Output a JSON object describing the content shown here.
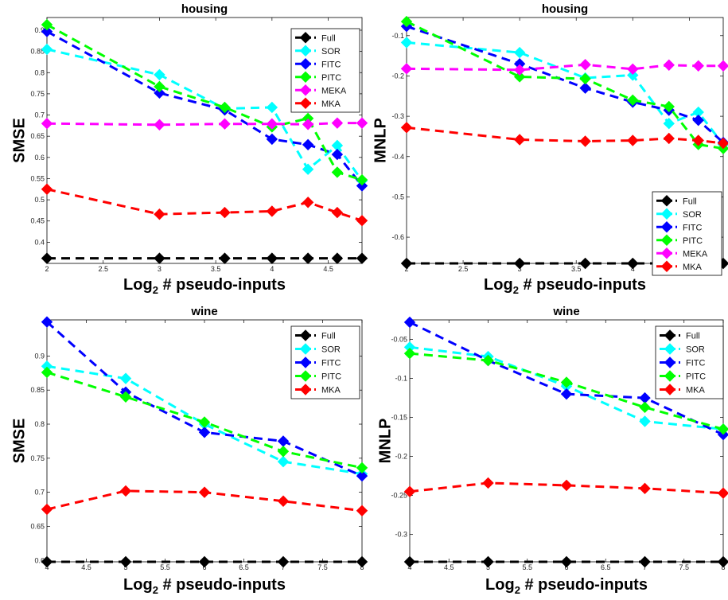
{
  "chart_data": [
    {
      "type": "line",
      "title": "housing",
      "ylabel": "SMSE",
      "xlabel_main": "Log",
      "xlabel_sub": "2",
      "xlabel_rest": " # pseudo-inputs",
      "xlim": [
        2,
        4.8
      ],
      "ylim": [
        0.35,
        0.93
      ],
      "xticks": [
        2,
        2.5,
        3,
        3.5,
        4,
        4.5
      ],
      "xtick_labels": [
        "2",
        "2.5",
        "3",
        "3.5",
        "4",
        "4.5"
      ],
      "yticks": [
        0.4,
        0.45,
        0.5,
        0.55,
        0.6,
        0.65,
        0.7,
        0.75,
        0.8,
        0.85,
        0.9
      ],
      "ytick_labels": [
        "0.4",
        "0.45",
        "0.5",
        "0.55",
        "0.6",
        "0.65",
        "0.7",
        "0.75",
        "0.8",
        "0.85",
        "0.9"
      ],
      "legend_position": "top-right",
      "series": [
        {
          "name": "Full",
          "color": "#000000",
          "x": [
            2,
            3,
            3.58,
            4,
            4.32,
            4.58,
            4.8
          ],
          "y": [
            0.362,
            0.362,
            0.362,
            0.362,
            0.362,
            0.362,
            0.362
          ]
        },
        {
          "name": "SOR",
          "color": "#00ffff",
          "x": [
            2,
            3,
            3.58,
            4,
            4.32,
            4.58,
            4.8
          ],
          "y": [
            0.855,
            0.795,
            0.715,
            0.718,
            0.572,
            0.628,
            0.545
          ]
        },
        {
          "name": "FITC",
          "color": "#0000ff",
          "x": [
            2,
            3,
            3.58,
            4,
            4.32,
            4.58,
            4.8
          ],
          "y": [
            0.897,
            0.752,
            0.712,
            0.643,
            0.63,
            0.607,
            0.533
          ]
        },
        {
          "name": "PITC",
          "color": "#00ff00",
          "x": [
            2,
            3,
            3.58,
            4,
            4.32,
            4.58,
            4.8
          ],
          "y": [
            0.913,
            0.767,
            0.718,
            0.672,
            0.692,
            0.565,
            0.547
          ]
        },
        {
          "name": "MEKA",
          "color": "#ff00ff",
          "x": [
            2,
            3,
            3.58,
            4,
            4.32,
            4.58,
            4.8
          ],
          "y": [
            0.68,
            0.677,
            0.679,
            0.679,
            0.678,
            0.681,
            0.681
          ]
        },
        {
          "name": "MKA",
          "color": "#ff0000",
          "x": [
            2,
            3,
            3.58,
            4,
            4.32,
            4.58,
            4.8
          ],
          "y": [
            0.525,
            0.466,
            0.47,
            0.473,
            0.494,
            0.47,
            0.451
          ]
        }
      ]
    },
    {
      "type": "line",
      "title": "housing",
      "ylabel": "MNLP",
      "xlabel_main": "Log",
      "xlabel_sub": "2",
      "xlabel_rest": " # pseudo-inputs",
      "xlim": [
        2,
        4.8
      ],
      "ylim": [
        -0.665,
        -0.055
      ],
      "xticks": [
        2,
        2.5,
        3,
        3.5,
        4,
        4.5
      ],
      "xtick_labels": [
        "2",
        "2.5",
        "3",
        "3.5",
        "4",
        "4.5"
      ],
      "yticks": [
        -0.6,
        -0.5,
        -0.4,
        -0.3,
        -0.2,
        -0.1
      ],
      "ytick_labels": [
        "-0.6",
        "-0.5",
        "-0.4",
        "-0.3",
        "-0.2",
        "-0.1"
      ],
      "legend_position": "bottom-right",
      "series": [
        {
          "name": "Full",
          "color": "#000000",
          "x": [
            2,
            3,
            3.58,
            4,
            4.32,
            4.58,
            4.8
          ],
          "y": [
            -0.665,
            -0.665,
            -0.665,
            -0.665,
            -0.665,
            -0.665,
            -0.665
          ]
        },
        {
          "name": "SOR",
          "color": "#00ffff",
          "x": [
            2,
            3,
            3.58,
            4,
            4.32,
            4.58,
            4.8
          ],
          "y": [
            -0.117,
            -0.142,
            -0.205,
            -0.198,
            -0.318,
            -0.29,
            -0.37
          ]
        },
        {
          "name": "FITC",
          "color": "#0000ff",
          "x": [
            2,
            3,
            3.58,
            4,
            4.32,
            4.58,
            4.8
          ],
          "y": [
            -0.077,
            -0.17,
            -0.23,
            -0.265,
            -0.285,
            -0.31,
            -0.365
          ]
        },
        {
          "name": "PITC",
          "color": "#00ff00",
          "x": [
            2,
            3,
            3.58,
            4,
            4.32,
            4.58,
            4.8
          ],
          "y": [
            -0.065,
            -0.202,
            -0.207,
            -0.26,
            -0.276,
            -0.37,
            -0.38
          ]
        },
        {
          "name": "MEKA",
          "color": "#ff00ff",
          "x": [
            2,
            3,
            3.58,
            4,
            4.32,
            4.58,
            4.8
          ],
          "y": [
            -0.182,
            -0.185,
            -0.172,
            -0.183,
            -0.173,
            -0.175,
            -0.175
          ]
        },
        {
          "name": "MKA",
          "color": "#ff0000",
          "x": [
            2,
            3,
            3.58,
            4,
            4.32,
            4.58,
            4.8
          ],
          "y": [
            -0.328,
            -0.358,
            -0.362,
            -0.36,
            -0.355,
            -0.36,
            -0.367
          ]
        }
      ]
    },
    {
      "type": "line",
      "title": "wine",
      "ylabel": "SMSE",
      "xlabel_main": "Log",
      "xlabel_sub": "2",
      "xlabel_rest": " # pseudo-inputs",
      "xlim": [
        4,
        8
      ],
      "ylim": [
        0.598,
        0.953
      ],
      "xticks": [
        4,
        4.5,
        5,
        5.5,
        6,
        6.5,
        7,
        7.5,
        8
      ],
      "xtick_labels": [
        "4",
        "4.5",
        "5",
        "5.5",
        "6",
        "6.5",
        "7",
        "7.5",
        "8"
      ],
      "yticks": [
        0.6,
        0.65,
        0.7,
        0.75,
        0.8,
        0.85,
        0.9
      ],
      "ytick_labels": [
        "0.6",
        "0.65",
        "0.7",
        "0.75",
        "0.8",
        "0.85",
        "0.9"
      ],
      "legend_position": "top-right",
      "series": [
        {
          "name": "Full",
          "color": "#000000",
          "x": [
            4,
            5,
            6,
            7,
            8
          ],
          "y": [
            0.598,
            0.598,
            0.598,
            0.598,
            0.598
          ]
        },
        {
          "name": "SOR",
          "color": "#00ffff",
          "x": [
            4,
            5,
            6,
            7,
            8
          ],
          "y": [
            0.885,
            0.867,
            0.8,
            0.745,
            0.727
          ]
        },
        {
          "name": "FITC",
          "color": "#0000ff",
          "x": [
            4,
            5,
            6,
            7,
            8
          ],
          "y": [
            0.95,
            0.847,
            0.788,
            0.775,
            0.724
          ]
        },
        {
          "name": "PITC",
          "color": "#00ff00",
          "x": [
            4,
            5,
            6,
            7,
            8
          ],
          "y": [
            0.876,
            0.84,
            0.803,
            0.76,
            0.736
          ]
        },
        {
          "name": "MKA",
          "color": "#ff0000",
          "x": [
            4,
            5,
            6,
            7,
            8
          ],
          "y": [
            0.675,
            0.702,
            0.7,
            0.687,
            0.673
          ]
        }
      ]
    },
    {
      "type": "line",
      "title": "wine",
      "ylabel": "MNLP",
      "xlabel_main": "Log",
      "xlabel_sub": "2",
      "xlabel_rest": " # pseudo-inputs",
      "xlim": [
        4,
        8
      ],
      "ylim": [
        -0.335,
        -0.025
      ],
      "xticks": [
        4,
        4.5,
        5,
        5.5,
        6,
        6.5,
        7,
        7.5,
        8
      ],
      "xtick_labels": [
        "4",
        "4.5",
        "5",
        "5.5",
        "6",
        "6.5",
        "7",
        "7.5",
        "8"
      ],
      "yticks": [
        -0.3,
        -0.25,
        -0.2,
        -0.15,
        -0.1,
        -0.05
      ],
      "ytick_labels": [
        "-0.3",
        "-0.25",
        "-0.2",
        "-0.15",
        "-0.1",
        "-0.05"
      ],
      "legend_position": "top-right",
      "series": [
        {
          "name": "Full",
          "color": "#000000",
          "x": [
            4,
            5,
            6,
            7,
            8
          ],
          "y": [
            -0.335,
            -0.335,
            -0.335,
            -0.335,
            -0.335
          ]
        },
        {
          "name": "SOR",
          "color": "#00ffff",
          "x": [
            4,
            5,
            6,
            7,
            8
          ],
          "y": [
            -0.06,
            -0.072,
            -0.11,
            -0.155,
            -0.165
          ]
        },
        {
          "name": "FITC",
          "color": "#0000ff",
          "x": [
            4,
            5,
            6,
            7,
            8
          ],
          "y": [
            -0.028,
            -0.077,
            -0.12,
            -0.125,
            -0.172
          ]
        },
        {
          "name": "PITC",
          "color": "#00ff00",
          "x": [
            4,
            5,
            6,
            7,
            8
          ],
          "y": [
            -0.068,
            -0.077,
            -0.105,
            -0.137,
            -0.165
          ]
        },
        {
          "name": "MKA",
          "color": "#ff0000",
          "x": [
            4,
            5,
            6,
            7,
            8
          ],
          "y": [
            -0.245,
            -0.234,
            -0.237,
            -0.241,
            -0.247
          ]
        }
      ]
    }
  ]
}
